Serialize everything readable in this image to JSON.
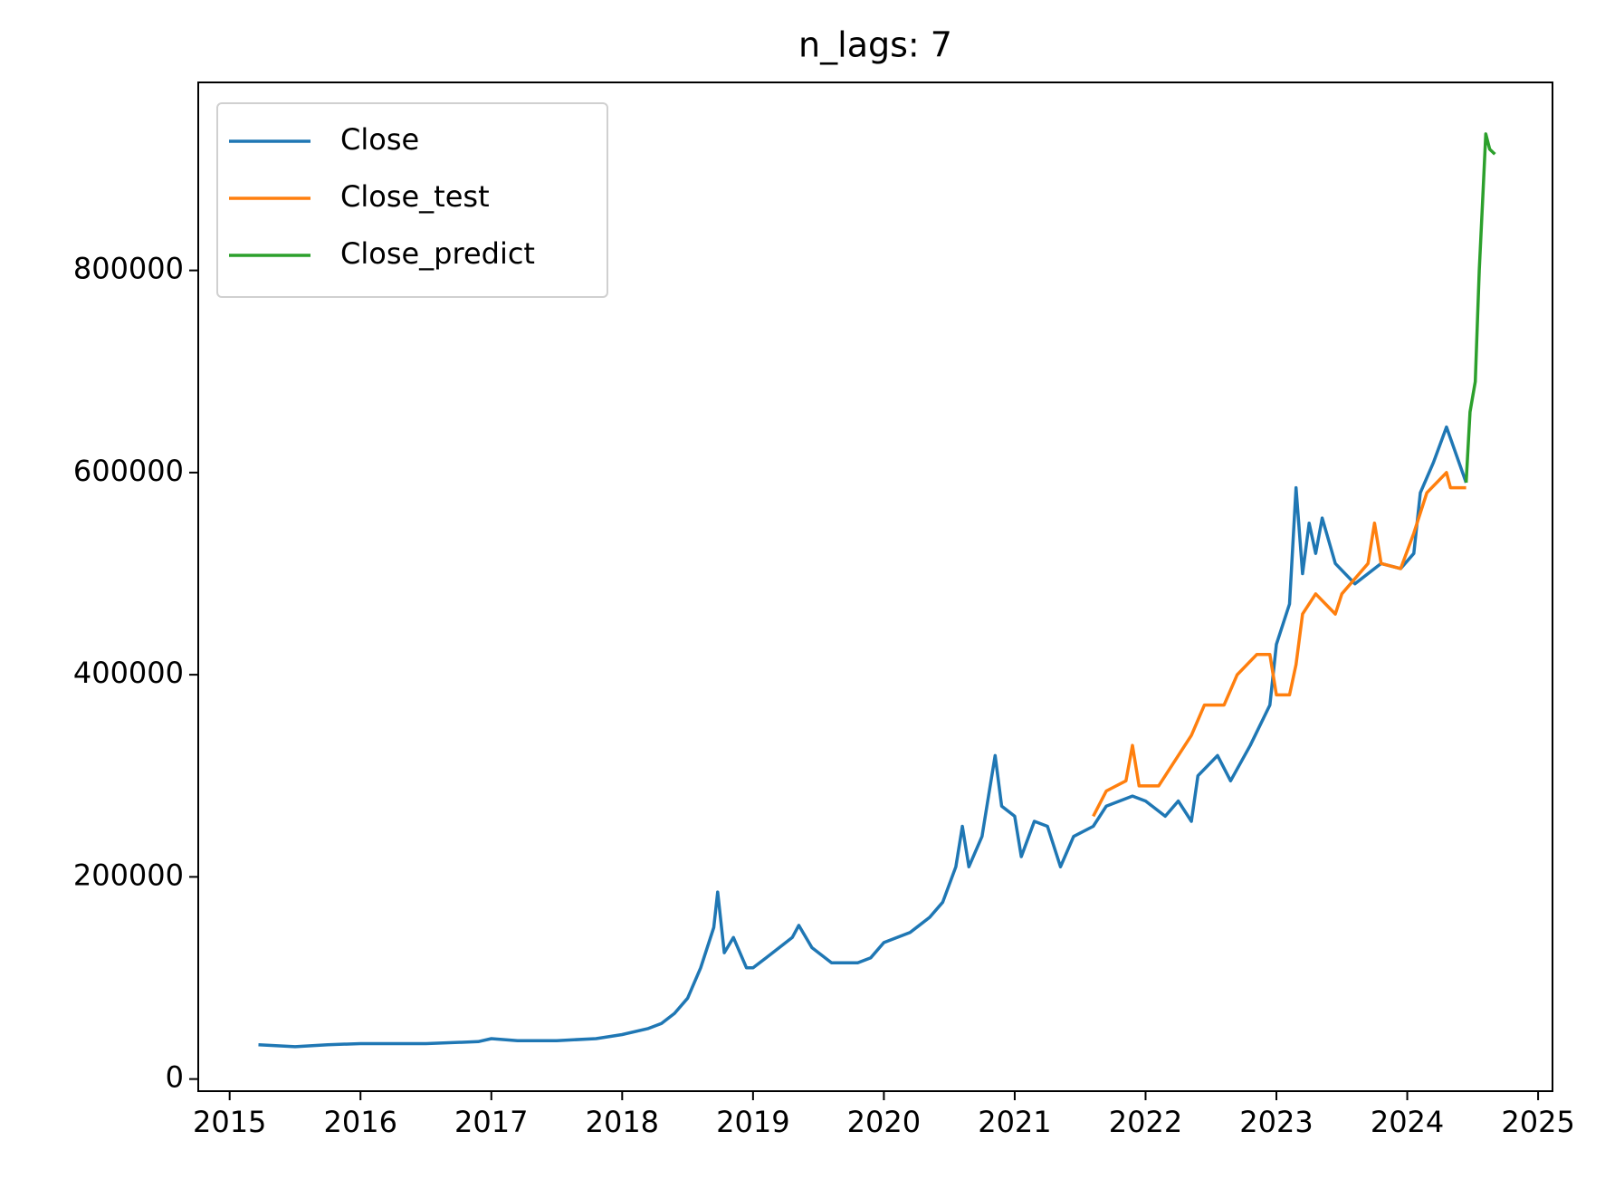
{
  "chart_data": {
    "type": "line",
    "title": "n_lags: 7",
    "xlim": [
      2014.76,
      2025.11
    ],
    "xticks": [
      2015,
      2016,
      2017,
      2018,
      2019,
      2020,
      2021,
      2022,
      2023,
      2024,
      2025
    ],
    "ylim": [
      -12000,
      986000
    ],
    "yticks": [
      0,
      200000,
      400000,
      600000,
      800000
    ],
    "legend": "upper left",
    "series": [
      {
        "name": "Close",
        "color": "#1f77b4",
        "x": [
          2015.22,
          2015.5,
          2015.75,
          2016.0,
          2016.5,
          2016.9,
          2017.0,
          2017.2,
          2017.5,
          2017.8,
          2018.0,
          2018.2,
          2018.3,
          2018.4,
          2018.5,
          2018.6,
          2018.7,
          2018.73,
          2018.78,
          2018.85,
          2018.95,
          2019.0,
          2019.1,
          2019.2,
          2019.3,
          2019.35,
          2019.45,
          2019.6,
          2019.8,
          2019.9,
          2020.0,
          2020.2,
          2020.35,
          2020.45,
          2020.55,
          2020.6,
          2020.65,
          2020.75,
          2020.8,
          2020.85,
          2020.9,
          2021.0,
          2021.05,
          2021.15,
          2021.25,
          2021.35,
          2021.45,
          2021.6,
          2021.7,
          2021.9,
          2022.0,
          2022.15,
          2022.25,
          2022.35,
          2022.4,
          2022.55,
          2022.65,
          2022.8,
          2022.95,
          2023.0,
          2023.1,
          2023.15,
          2023.2,
          2023.25,
          2023.3,
          2023.35,
          2023.45,
          2023.6,
          2023.8,
          2023.95,
          2024.05,
          2024.1,
          2024.2,
          2024.3,
          2024.45
        ],
        "values": [
          34000,
          32000,
          34000,
          35000,
          35000,
          37000,
          40000,
          38000,
          38000,
          40000,
          44000,
          50000,
          55000,
          65000,
          80000,
          110000,
          150000,
          185000,
          125000,
          140000,
          110000,
          110000,
          120000,
          130000,
          140000,
          152000,
          130000,
          115000,
          115000,
          120000,
          135000,
          145000,
          160000,
          175000,
          210000,
          250000,
          210000,
          240000,
          280000,
          320000,
          270000,
          260000,
          220000,
          255000,
          250000,
          210000,
          240000,
          250000,
          270000,
          280000,
          275000,
          260000,
          275000,
          255000,
          300000,
          320000,
          295000,
          330000,
          370000,
          430000,
          470000,
          585000,
          500000,
          550000,
          520000,
          555000,
          510000,
          490000,
          510000,
          505000,
          520000,
          580000,
          610000,
          645000,
          590000
        ]
      },
      {
        "name": "Close_test",
        "color": "#ff7f0e",
        "x": [
          2021.6,
          2021.7,
          2021.85,
          2021.9,
          2021.95,
          2022.1,
          2022.2,
          2022.35,
          2022.45,
          2022.6,
          2022.7,
          2022.85,
          2022.95,
          2023.0,
          2023.1,
          2023.15,
          2023.2,
          2023.3,
          2023.45,
          2023.5,
          2023.7,
          2023.75,
          2023.8,
          2023.95,
          2024.05,
          2024.15,
          2024.3,
          2024.33,
          2024.45
        ],
        "values": [
          260000,
          285000,
          295000,
          330000,
          290000,
          290000,
          310000,
          340000,
          370000,
          370000,
          400000,
          420000,
          420000,
          380000,
          380000,
          410000,
          460000,
          480000,
          460000,
          480000,
          510000,
          550000,
          510000,
          505000,
          540000,
          580000,
          600000,
          585000,
          585000
        ]
      },
      {
        "name": "Close_predict",
        "color": "#2ca02c",
        "x": [
          2024.45,
          2024.48,
          2024.52,
          2024.55,
          2024.58,
          2024.6,
          2024.63,
          2024.67
        ],
        "values": [
          590000,
          660000,
          690000,
          800000,
          880000,
          935000,
          920000,
          915000
        ]
      }
    ]
  }
}
